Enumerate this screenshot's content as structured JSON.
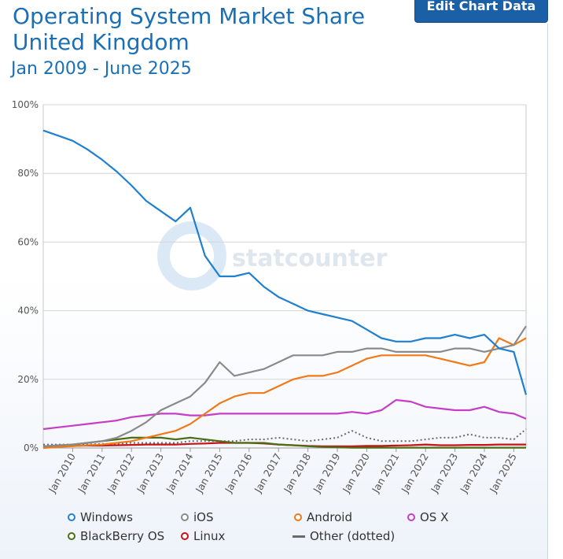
{
  "header": {
    "title_line1": "Operating System Market Share",
    "title_line2": "United Kingdom",
    "subtitle": "Jan 2009 - June 2025",
    "edit_button": "Edit Chart Data",
    "watermark": "statcounter"
  },
  "colors": {
    "Windows": "#1f7fd1",
    "iOS": "#8a8a8a",
    "Android": "#f07a1a",
    "OS X": "#c53ec5",
    "BlackBerry OS": "#4d6e12",
    "Linux": "#c7121a",
    "Other (dotted)": "#6b6b6b"
  },
  "chart_data": {
    "type": "line",
    "x_start": "2009-01",
    "x_end": "2025-06",
    "ylim": [
      0,
      100
    ],
    "yticks": [
      "0%",
      "20%",
      "40%",
      "60%",
      "80%",
      "100%"
    ],
    "xticks": [
      "Jan 2010",
      "Jan 2011",
      "Jan 2012",
      "Jan 2013",
      "Jan 2014",
      "Jan 2015",
      "Jan 2016",
      "Jan 2017",
      "Jan 2018",
      "Jan 2019",
      "Jan 2020",
      "Jan 2021",
      "Jan 2022",
      "Jan 2023",
      "Jan 2024",
      "Jan 2025"
    ],
    "series": [
      {
        "name": "Windows",
        "x": [
          "2009-01",
          "2009-07",
          "2010-01",
          "2010-07",
          "2011-01",
          "2011-07",
          "2012-01",
          "2012-07",
          "2013-01",
          "2013-07",
          "2014-01",
          "2014-07",
          "2015-01",
          "2015-07",
          "2016-01",
          "2016-07",
          "2017-01",
          "2017-07",
          "2018-01",
          "2018-07",
          "2019-01",
          "2019-07",
          "2020-01",
          "2020-07",
          "2021-01",
          "2021-07",
          "2022-01",
          "2022-07",
          "2023-01",
          "2023-07",
          "2024-01",
          "2024-07",
          "2025-01",
          "2025-06"
        ],
        "y": [
          92.5,
          91,
          89.5,
          87,
          84,
          80.5,
          76.5,
          72,
          69,
          66,
          70,
          56,
          50,
          50,
          51,
          47,
          44,
          42,
          40,
          39,
          38,
          37,
          34.5,
          32,
          31,
          31,
          32,
          32,
          33,
          32,
          33,
          29,
          28,
          15.5
        ]
      },
      {
        "name": "iOS",
        "x": [
          "2009-01",
          "2009-07",
          "2010-01",
          "2010-07",
          "2011-01",
          "2011-07",
          "2012-01",
          "2012-07",
          "2013-01",
          "2013-07",
          "2014-01",
          "2014-07",
          "2015-01",
          "2015-07",
          "2016-01",
          "2016-07",
          "2017-01",
          "2017-07",
          "2018-01",
          "2018-07",
          "2019-01",
          "2019-07",
          "2020-01",
          "2020-07",
          "2021-01",
          "2021-07",
          "2022-01",
          "2022-07",
          "2023-01",
          "2023-07",
          "2024-01",
          "2024-07",
          "2025-01",
          "2025-06"
        ],
        "y": [
          0.5,
          0.8,
          1,
          1.5,
          2,
          3,
          5,
          7.5,
          11,
          13,
          15,
          19,
          25,
          21,
          22,
          23,
          25,
          27,
          27,
          27,
          28,
          28,
          29,
          29,
          28,
          28,
          28,
          28,
          29,
          29,
          28,
          29,
          30,
          35.5
        ]
      },
      {
        "name": "Android",
        "x": [
          "2009-01",
          "2009-07",
          "2010-01",
          "2010-07",
          "2011-01",
          "2011-07",
          "2012-01",
          "2012-07",
          "2013-01",
          "2013-07",
          "2014-01",
          "2014-07",
          "2015-01",
          "2015-07",
          "2016-01",
          "2016-07",
          "2017-01",
          "2017-07",
          "2018-01",
          "2018-07",
          "2019-01",
          "2019-07",
          "2020-01",
          "2020-07",
          "2021-01",
          "2021-07",
          "2022-01",
          "2022-07",
          "2023-01",
          "2023-07",
          "2024-01",
          "2024-07",
          "2025-01",
          "2025-06"
        ],
        "y": [
          0,
          0.3,
          0.5,
          0.8,
          1,
          1.5,
          2,
          3,
          4,
          5,
          7,
          10,
          13,
          15,
          16,
          16,
          18,
          20,
          21,
          21,
          22,
          24,
          26,
          27,
          27,
          27,
          27,
          26,
          25,
          24,
          25,
          32,
          30,
          32
        ]
      },
      {
        "name": "OS X",
        "x": [
          "2009-01",
          "2009-07",
          "2010-01",
          "2010-07",
          "2011-01",
          "2011-07",
          "2012-01",
          "2012-07",
          "2013-01",
          "2013-07",
          "2014-01",
          "2014-07",
          "2015-01",
          "2015-07",
          "2016-01",
          "2016-07",
          "2017-01",
          "2017-07",
          "2018-01",
          "2018-07",
          "2019-01",
          "2019-07",
          "2020-01",
          "2020-07",
          "2021-01",
          "2021-07",
          "2022-01",
          "2022-07",
          "2023-01",
          "2023-07",
          "2024-01",
          "2024-07",
          "2025-01",
          "2025-06"
        ],
        "y": [
          5.5,
          6,
          6.5,
          7,
          7.5,
          8,
          9,
          9.5,
          10,
          10,
          9.5,
          9.5,
          10,
          10,
          10,
          10,
          10,
          10,
          10,
          10,
          10,
          10.5,
          10,
          11,
          14,
          13.5,
          12,
          11.5,
          11,
          11,
          12,
          10.5,
          10,
          8.5
        ]
      },
      {
        "name": "BlackBerry OS",
        "x": [
          "2009-01",
          "2009-07",
          "2010-01",
          "2010-07",
          "2011-01",
          "2011-07",
          "2012-01",
          "2012-07",
          "2013-01",
          "2013-07",
          "2014-01",
          "2014-07",
          "2015-01",
          "2015-07",
          "2016-01",
          "2016-07",
          "2017-01",
          "2017-07",
          "2018-01",
          "2018-07",
          "2019-01",
          "2019-07",
          "2020-01",
          "2020-07",
          "2021-01",
          "2021-07",
          "2022-01",
          "2022-07",
          "2023-01",
          "2023-07",
          "2024-01",
          "2024-07",
          "2025-01",
          "2025-06"
        ],
        "y": [
          0,
          0.5,
          1,
          1.5,
          2,
          2.5,
          3,
          3,
          3,
          2.5,
          3,
          2.5,
          2,
          1.5,
          1.5,
          1.5,
          1,
          0.8,
          0.5,
          0.3,
          0.2,
          0.1,
          0.1,
          0.1,
          0.1,
          0.1,
          0.1,
          0.1,
          0.1,
          0.1,
          0.1,
          0.1,
          0.1,
          0.1
        ]
      },
      {
        "name": "Linux",
        "x": [
          "2009-01",
          "2009-07",
          "2010-01",
          "2010-07",
          "2011-01",
          "2011-07",
          "2012-01",
          "2012-07",
          "2013-01",
          "2013-07",
          "2014-01",
          "2014-07",
          "2015-01",
          "2015-07",
          "2016-01",
          "2016-07",
          "2017-01",
          "2017-07",
          "2018-01",
          "2018-07",
          "2019-01",
          "2019-07",
          "2020-01",
          "2020-07",
          "2021-01",
          "2021-07",
          "2022-01",
          "2022-07",
          "2023-01",
          "2023-07",
          "2024-01",
          "2024-07",
          "2025-01",
          "2025-06"
        ],
        "y": [
          0.5,
          0.5,
          0.6,
          0.7,
          0.7,
          0.8,
          0.9,
          1,
          1,
          1,
          1.2,
          1.3,
          1.5,
          1.5,
          1.5,
          1.3,
          1,
          0.8,
          0.6,
          0.5,
          0.5,
          0.5,
          0.6,
          0.6,
          0.7,
          0.8,
          1,
          0.8,
          0.8,
          0.9,
          0.9,
          1,
          1,
          1
        ]
      },
      {
        "name": "Other (dotted)",
        "dotted": true,
        "x": [
          "2009-01",
          "2009-07",
          "2010-01",
          "2010-07",
          "2011-01",
          "2011-07",
          "2012-01",
          "2012-07",
          "2013-01",
          "2013-07",
          "2014-01",
          "2014-07",
          "2015-01",
          "2015-07",
          "2016-01",
          "2016-07",
          "2017-01",
          "2017-07",
          "2018-01",
          "2018-07",
          "2019-01",
          "2019-07",
          "2020-01",
          "2020-07",
          "2021-01",
          "2021-07",
          "2022-01",
          "2022-07",
          "2023-01",
          "2023-07",
          "2024-01",
          "2024-07",
          "2025-01",
          "2025-06"
        ],
        "y": [
          1,
          1,
          1,
          1,
          1.2,
          1.2,
          1.5,
          1.5,
          1.5,
          1.5,
          2,
          2,
          2,
          2,
          2.5,
          2.5,
          3,
          2.5,
          2,
          2.5,
          3,
          5,
          3,
          2,
          2,
          2,
          2.5,
          3,
          3,
          4,
          3,
          3,
          2.5,
          5.5
        ]
      }
    ]
  }
}
